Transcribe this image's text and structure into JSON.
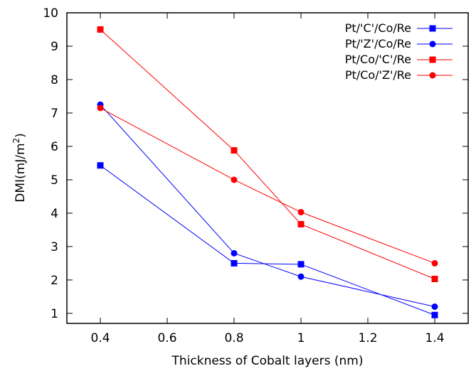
{
  "chart_data": {
    "type": "line",
    "title": "",
    "xlabel": "Thickness of Cobalt layers (nm)",
    "ylabel_main": "DMI(mJ/m",
    "ylabel_sup": "2",
    "ylabel_close": ")",
    "xlim": [
      0.3,
      1.5
    ],
    "ylim": [
      0.7,
      10
    ],
    "x_ticks": [
      "0.4",
      "0.6",
      "0.8",
      "1",
      "1.2",
      "1.4"
    ],
    "y_ticks": [
      "1",
      "2",
      "3",
      "4",
      "5",
      "6",
      "7",
      "8",
      "9",
      "10"
    ],
    "legend_position": "top-right",
    "grid": false,
    "x": [
      0.4,
      0.8,
      1.0,
      1.4
    ],
    "series": [
      {
        "name": "Pt/'C'/Co/Re",
        "color": "#0000ff",
        "marker": "square",
        "values": [
          5.43,
          2.5,
          2.47,
          0.95
        ]
      },
      {
        "name": "Pt/'Z'/Co/Re",
        "color": "#0000ff",
        "marker": "circle",
        "values": [
          7.25,
          2.8,
          2.1,
          1.2
        ]
      },
      {
        "name": "Pt/Co/'C'/Re",
        "color": "#ff0000",
        "marker": "square",
        "values": [
          9.5,
          5.88,
          3.67,
          2.03
        ]
      },
      {
        "name": "Pt/Co/'Z'/Re",
        "color": "#ff0000",
        "marker": "circle",
        "values": [
          7.15,
          5.0,
          4.03,
          2.5
        ]
      }
    ]
  }
}
